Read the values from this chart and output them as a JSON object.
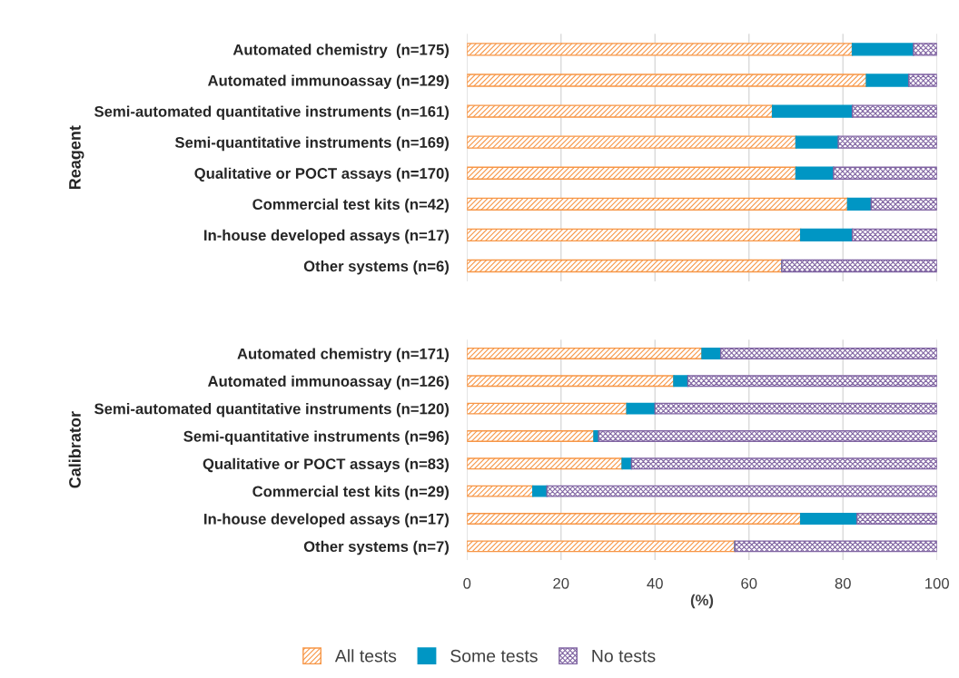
{
  "chart_data": [
    {
      "type": "bar",
      "orientation": "horizontal",
      "stacked": true,
      "ylabel": "Reagent",
      "tick_labels": "y",
      "grid": "x",
      "legend": false,
      "categories": [
        "Automated chemistry  (n=175)",
        "Automated immunoassay (n=129)",
        "Semi-automated quantitative instruments (n=161)",
        "Semi-quantitative instruments (n=169)",
        "Qualitative or POCT assays (n=170)",
        "Commercial test kits (n=42)",
        "In-house developed assays (n=17)",
        "Other systems (n=6)"
      ],
      "xlim": [
        0,
        100
      ],
      "xticks": [
        0,
        20,
        40,
        60,
        80,
        100
      ],
      "series": [
        {
          "color": "#f79646",
          "values": [
            82,
            85,
            65,
            70,
            70,
            81,
            71,
            67
          ]
        },
        {
          "color": "#0096c4",
          "values": [
            13,
            9,
            17,
            9,
            8,
            5,
            11,
            0
          ]
        },
        {
          "color": "#8064a2",
          "values": [
            5,
            6,
            18,
            21,
            22,
            14,
            18,
            33
          ]
        }
      ]
    },
    {
      "type": "bar",
      "orientation": "horizontal",
      "stacked": true,
      "ylabel": "Calibrator",
      "xlabel": "(%)",
      "grid": "x",
      "legend": "bottom",
      "categories": [
        "Automated chemistry (n=171)",
        "Automated immunoassay (n=126)",
        "Semi-automated quantitative instruments (n=120)",
        "Semi-quantitative instruments (n=96)",
        "Qualitative or POCT assays (n=83)",
        "Commercial test kits (n=29)",
        "In-house developed assays (n=17)",
        "Other systems (n=7)"
      ],
      "xlim": [
        0,
        100
      ],
      "xticks": [
        0,
        20,
        40,
        60,
        80,
        100
      ],
      "series": [
        {
          "name": "All tests",
          "color": "#f79646",
          "values": [
            50,
            44,
            34,
            27,
            33,
            14,
            71,
            57
          ]
        },
        {
          "name": "Some tests",
          "color": "#0096c4",
          "values": [
            4,
            3,
            6,
            1,
            2,
            3,
            12,
            0
          ]
        },
        {
          "name": "No tests",
          "color": "#8064a2",
          "values": [
            46,
            53,
            60,
            72,
            65,
            83,
            17,
            43
          ]
        }
      ]
    }
  ]
}
